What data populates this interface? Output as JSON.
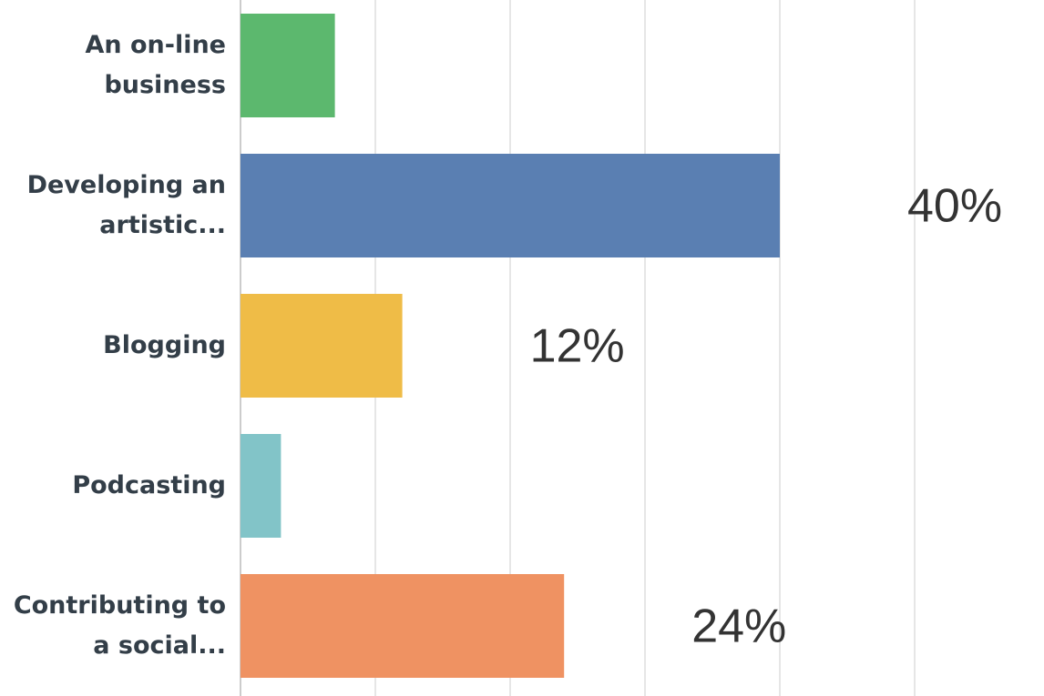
{
  "chart_data": {
    "type": "barh",
    "categories": [
      "An on-line business",
      "Developing an artistic...",
      "Blogging",
      "Podcasting",
      "Contributing to a social..."
    ],
    "values": [
      7,
      40,
      12,
      3,
      24
    ],
    "value_labels": [
      null,
      "40%",
      "12%",
      null,
      "24%"
    ],
    "colors": [
      "#5cb86e",
      "#5a7fb2",
      "#efbc47",
      "#82c4c8",
      "#ef9262"
    ],
    "xlim": [
      0,
      60
    ],
    "xticks": [
      0,
      10,
      20,
      30,
      40,
      50
    ],
    "grid": true
  }
}
